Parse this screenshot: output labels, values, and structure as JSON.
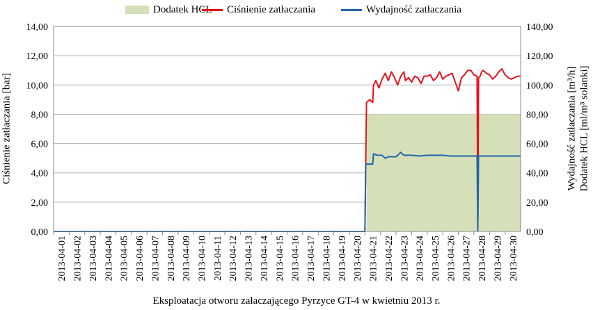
{
  "chart_data": {
    "type": "line",
    "title": "",
    "xlabel": "Eksploatacja otworu załaczającego Pyrzyce GT-4 w kwietniu 2013 r.",
    "ylabel_left": "Ciśnienie zatłaczania [bar]",
    "ylabel_right_1": "Wydajność zatłaczania [m³/h]",
    "ylabel_right_2": "Dodatek HCL [ml/m³ solanki]",
    "y_left_lim": [
      0,
      14
    ],
    "y_right_lim": [
      0,
      140
    ],
    "y_left_ticks": [
      "0,00",
      "2,00",
      "4,00",
      "6,00",
      "8,00",
      "10,00",
      "12,00",
      "14,00"
    ],
    "y_right_ticks": [
      "0,00",
      "20,00",
      "40,00",
      "60,00",
      "80,00",
      "100,00",
      "120,00",
      "140,00"
    ],
    "categories": [
      "2013-04-01",
      "2013-04-02",
      "2013-04-03",
      "2013-04-04",
      "2013-04-05",
      "2013-04-06",
      "2013-04-07",
      "2013-04-08",
      "2013-04-09",
      "2013-04-10",
      "2013-04-11",
      "2013-04-12",
      "2013-04-13",
      "2013-04-14",
      "2013-04-15",
      "2013-04-16",
      "2013-04-17",
      "2013-04-18",
      "2013-04-19",
      "2013-04-20",
      "2013-04-21",
      "2013-04-22",
      "2013-04-23",
      "2013-04-24",
      "2013-04-25",
      "2013-04-26",
      "2013-04-27",
      "2013-04-28",
      "2013-04-29",
      "2013-04-30"
    ],
    "grid": true,
    "legend_position": "top",
    "series": [
      {
        "name": "Dodatek HCL",
        "type": "area",
        "axis": "right",
        "color": "#d5e0b8",
        "x": [
          1,
          21.1,
          21.1,
          31
        ],
        "values": [
          0,
          0,
          80,
          80
        ]
      },
      {
        "name": "Ciśnienie zatłaczania",
        "type": "line",
        "axis": "left",
        "color": "#e8111b",
        "x": [
          1,
          21.0,
          21.05,
          21.1,
          21.3,
          21.5,
          21.55,
          21.7,
          21.9,
          22.1,
          22.3,
          22.5,
          22.7,
          22.9,
          23.1,
          23.3,
          23.5,
          23.6,
          23.8,
          24.0,
          24.2,
          24.4,
          24.6,
          24.8,
          25.0,
          25.2,
          25.4,
          25.6,
          25.8,
          26.0,
          26.2,
          26.4,
          26.6,
          26.8,
          27.0,
          27.2,
          27.4,
          27.6,
          27.8,
          28.0,
          28.2,
          28.25,
          28.3,
          28.4,
          28.5,
          28.6,
          28.8,
          29.0,
          29.2,
          29.4,
          29.6,
          29.8,
          30.0,
          30.2,
          30.4,
          30.6,
          30.8,
          31.0
        ],
        "values": [
          0,
          0,
          4.6,
          8.8,
          9.0,
          8.8,
          10.0,
          10.3,
          9.8,
          10.4,
          10.8,
          10.3,
          10.9,
          10.5,
          10.0,
          10.6,
          10.9,
          10.3,
          10.5,
          10.2,
          10.6,
          10.5,
          10.1,
          10.6,
          10.6,
          10.7,
          10.3,
          10.5,
          10.9,
          10.4,
          10.6,
          10.7,
          10.8,
          10.2,
          9.6,
          10.5,
          10.7,
          11.0,
          11.0,
          10.7,
          10.6,
          0.5,
          10.5,
          10.6,
          10.9,
          11.0,
          10.8,
          10.7,
          10.4,
          10.6,
          10.9,
          11.1,
          10.7,
          10.5,
          10.4,
          10.5,
          10.6,
          10.6
        ]
      },
      {
        "name": "Wydajność zatłaczania",
        "type": "line",
        "axis": "right",
        "color": "#2266aa",
        "x": [
          1,
          21.0,
          21.05,
          21.1,
          21.3,
          21.5,
          21.55,
          21.8,
          22.1,
          22.3,
          22.5,
          22.7,
          23.0,
          23.2,
          23.3,
          23.5,
          23.7,
          24.0,
          24.5,
          25.0,
          25.5,
          26.0,
          26.5,
          27.0,
          27.5,
          28.0,
          28.2,
          28.25,
          28.3,
          28.4,
          29.0,
          29.5,
          30.0,
          30.5,
          31.0
        ],
        "values": [
          0,
          0,
          46,
          46,
          46,
          46,
          53,
          52,
          52,
          50,
          51,
          51,
          51,
          53,
          54,
          52,
          52,
          52,
          51.5,
          52,
          52,
          52,
          51.5,
          51.5,
          51.5,
          51.5,
          51.5,
          0.5,
          51.5,
          51.5,
          51.5,
          51.5,
          51.5,
          51.5,
          51.5
        ]
      }
    ]
  }
}
